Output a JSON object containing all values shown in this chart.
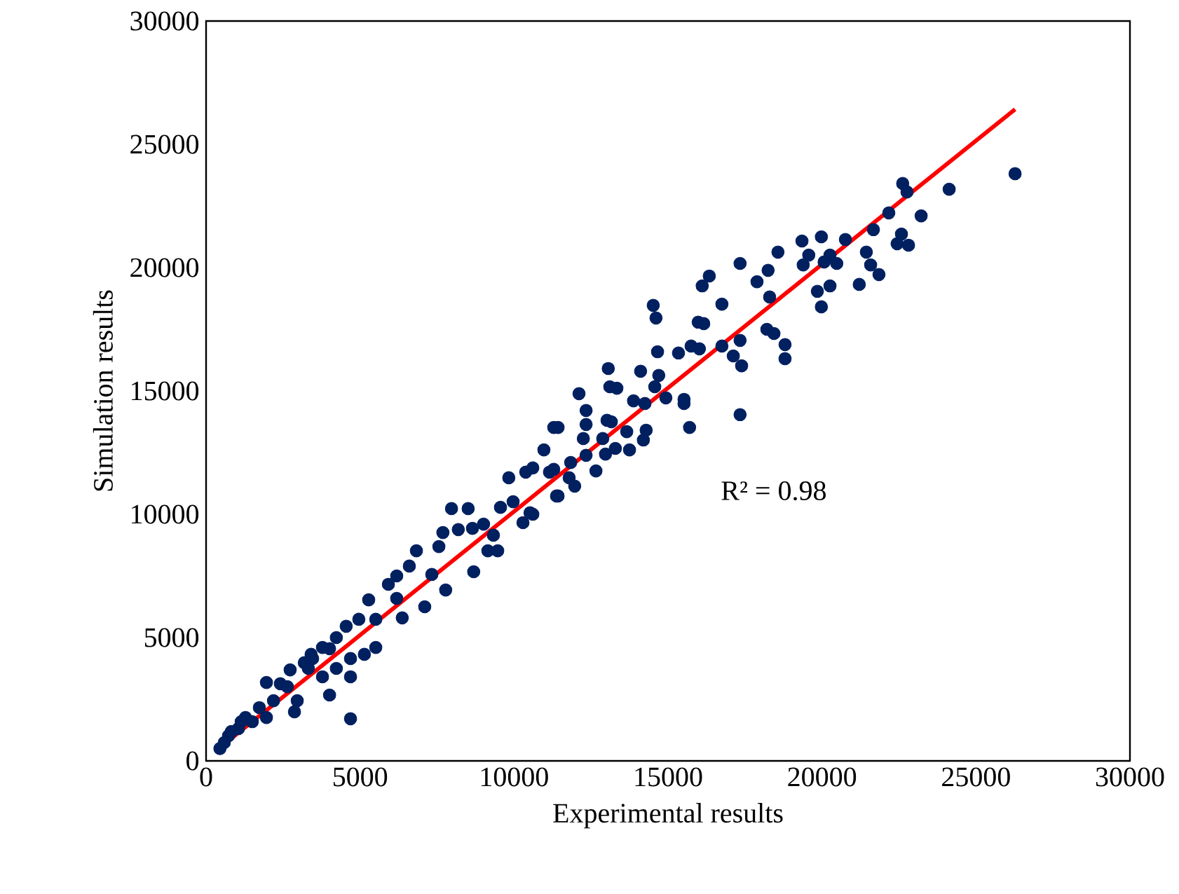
{
  "chart_data": {
    "type": "scatter",
    "xlabel": "Experimental results",
    "ylabel": "Simulation results",
    "annotations": [
      "R² = 0.98"
    ],
    "xlim": [
      0,
      30000
    ],
    "ylim": [
      0,
      30000
    ],
    "xticks": [
      0,
      5000,
      10000,
      15000,
      20000,
      25000,
      30000
    ],
    "yticks": [
      0,
      5000,
      10000,
      15000,
      20000,
      25000,
      30000
    ],
    "grid": false,
    "series": [
      {
        "color": "#002060",
        "marker": "circle",
        "x": [
          26270,
          24130,
          22620,
          22760,
          23220,
          22170,
          21670,
          22580,
          22440,
          22810,
          21440,
          21580,
          21850,
          21210,
          20760,
          19980,
          19350,
          19570,
          19390,
          20260,
          20070,
          20480,
          19850,
          20260,
          19980,
          18800,
          18800,
          17340,
          16340,
          16110,
          16750,
          14520,
          14610,
          17890,
          18250,
          18570,
          18300,
          18210,
          18440,
          17340,
          17120,
          17390,
          16750,
          15980,
          16160,
          15750,
          16020,
          15340,
          14660,
          14110,
          13060,
          14700,
          14570,
          13110,
          13340,
          12110,
          13880,
          14250,
          14930,
          15520,
          15520,
          12340,
          13020,
          13160,
          17340,
          15700,
          12340,
          11290,
          11430,
          13660,
          14290,
          14200,
          12250,
          12880,
          13290,
          13750,
          12340,
          12970,
          11840,
          10970,
          11290,
          11150,
          12660,
          11790,
          11970,
          11430,
          10610,
          7970,
          8510,
          9560,
          9830,
          10380,
          10610,
          11380,
          9970,
          10520,
          10290,
          9330,
          9150,
          9470,
          8690,
          7780,
          7100,
          7330,
          6830,
          6600,
          6190,
          5920,
          6190,
          6370,
          7690,
          7560,
          8190,
          8650,
          9010,
          5280,
          4960,
          4550,
          4230,
          5510,
          5510,
          5140,
          4690,
          4690,
          4230,
          4010,
          3780,
          3410,
          3320,
          3780,
          4010,
          4690,
          2730,
          2960,
          2870,
          2410,
          1960,
          2190,
          1960,
          1500,
          1280,
          1050,
          730,
          450,
          3460,
          3190,
          2640,
          1730,
          820,
          590,
          1140
        ],
        "values": [
          23810,
          23180,
          23410,
          23070,
          22100,
          22220,
          21540,
          21360,
          20970,
          20910,
          20630,
          20110,
          19720,
          19320,
          21140,
          21250,
          21080,
          20510,
          20110,
          20510,
          20230,
          20170,
          19040,
          19260,
          18410,
          16880,
          16310,
          20170,
          19660,
          19260,
          18520,
          18470,
          17960,
          19430,
          19890,
          20630,
          18810,
          17500,
          17330,
          17050,
          16420,
          16020,
          16820,
          17790,
          17730,
          16820,
          16710,
          16540,
          16590,
          15800,
          15910,
          15630,
          15170,
          15170,
          15110,
          14890,
          14600,
          14490,
          14720,
          14660,
          14490,
          14210,
          13810,
          13750,
          14040,
          13520,
          13640,
          13520,
          13520,
          13350,
          13410,
          13010,
          13070,
          13070,
          12670,
          12610,
          12390,
          12440,
          12100,
          12610,
          11820,
          11710,
          11760,
          11480,
          11140,
          10740,
          10000,
          10230,
          10230,
          10280,
          11480,
          11710,
          11880,
          10740,
          10510,
          10060,
          9660,
          9150,
          8520,
          8520,
          7670,
          6930,
          6250,
          7560,
          8520,
          7900,
          7500,
          7160,
          6590,
          5800,
          9260,
          8690,
          9380,
          9430,
          9600,
          6530,
          5740,
          5460,
          5000,
          5740,
          4600,
          4320,
          4150,
          3410,
          3750,
          4550,
          4600,
          4320,
          3750,
          3410,
          2670,
          1710,
          3690,
          2440,
          1990,
          3130,
          3180,
          2440,
          1760,
          1590,
          1760,
          1310,
          1020,
          500,
          4150,
          3980,
          3010,
          2160,
          1190,
          740,
          1590
        ]
      },
      {
        "type": "line",
        "color": "#ff0000",
        "marker": "none",
        "x": [
          450,
          26270
        ],
        "values": [
          540,
          26420
        ]
      }
    ]
  }
}
